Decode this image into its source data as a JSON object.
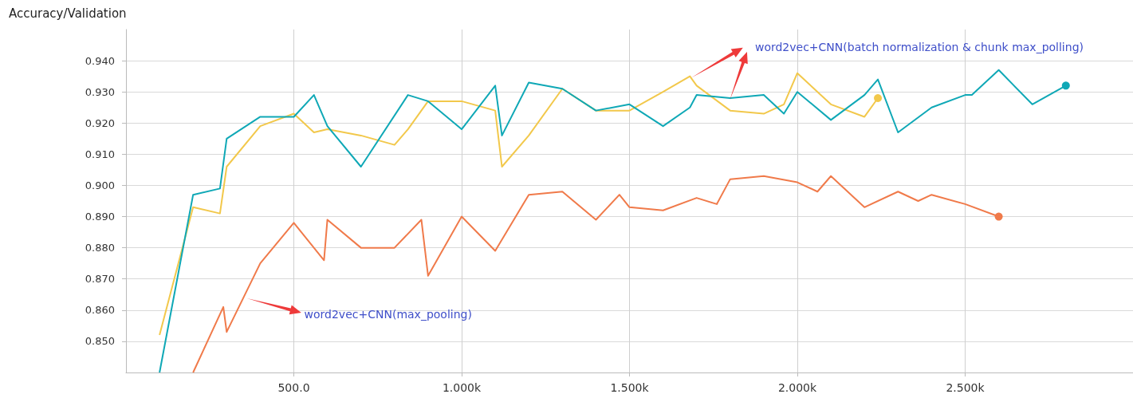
{
  "chart_data": {
    "type": "line",
    "title": "Accuracy/Validation",
    "xlim": [
      0,
      3000
    ],
    "ylim": [
      0.84,
      0.95
    ],
    "xticks": [
      {
        "value": 500,
        "label": "500.0"
      },
      {
        "value": 1000,
        "label": "1.000k"
      },
      {
        "value": 1500,
        "label": "1.500k"
      },
      {
        "value": 2000,
        "label": "2.000k"
      },
      {
        "value": 2500,
        "label": "2.500k"
      }
    ],
    "yticks": [
      {
        "value": 0.85,
        "label": "0.850"
      },
      {
        "value": 0.86,
        "label": "0.860"
      },
      {
        "value": 0.87,
        "label": "0.870"
      },
      {
        "value": 0.88,
        "label": "0.880"
      },
      {
        "value": 0.89,
        "label": "0.890"
      },
      {
        "value": 0.9,
        "label": "0.900"
      },
      {
        "value": 0.91,
        "label": "0.910"
      },
      {
        "value": 0.92,
        "label": "0.920"
      },
      {
        "value": 0.93,
        "label": "0.930"
      },
      {
        "value": 0.94,
        "label": "0.940"
      }
    ],
    "grid": true,
    "series": [
      {
        "color": "#f07a4a",
        "x": [
          200,
          290,
          300,
          400,
          500,
          590,
          600,
          700,
          800,
          880,
          900,
          1000,
          1100,
          1200,
          1300,
          1400,
          1470,
          1500,
          1600,
          1700,
          1760,
          1800,
          1900,
          2000,
          2060,
          2100,
          2200,
          2300,
          2360,
          2400,
          2500,
          2600
        ],
        "values": [
          0.84,
          0.861,
          0.853,
          0.875,
          0.888,
          0.876,
          0.889,
          0.88,
          0.88,
          0.889,
          0.871,
          0.89,
          0.879,
          0.897,
          0.898,
          0.889,
          0.897,
          0.893,
          0.892,
          0.896,
          0.894,
          0.902,
          0.903,
          0.901,
          0.898,
          0.903,
          0.893,
          0.898,
          0.895,
          0.897,
          0.894,
          0.89
        ]
      },
      {
        "color": "#f2c84b",
        "x": [
          100,
          200,
          280,
          300,
          400,
          500,
          560,
          600,
          700,
          800,
          840,
          900,
          1000,
          1100,
          1120,
          1200,
          1300,
          1400,
          1500,
          1600,
          1680,
          1700,
          1800,
          1900,
          1960,
          2000,
          2100,
          2200,
          2240
        ],
        "values": [
          0.852,
          0.893,
          0.891,
          0.906,
          0.919,
          0.923,
          0.917,
          0.918,
          0.916,
          0.913,
          0.918,
          0.927,
          0.927,
          0.924,
          0.906,
          0.916,
          0.931,
          0.924,
          0.924,
          0.93,
          0.935,
          0.932,
          0.924,
          0.923,
          0.926,
          0.936,
          0.926,
          0.922,
          0.928
        ]
      },
      {
        "color": "#0fa8b6",
        "x": [
          100,
          200,
          280,
          300,
          400,
          500,
          560,
          600,
          700,
          840,
          900,
          1000,
          1100,
          1120,
          1200,
          1300,
          1400,
          1500,
          1600,
          1680,
          1700,
          1800,
          1900,
          1960,
          2000,
          2100,
          2200,
          2240,
          2300,
          2400,
          2500,
          2520,
          2600,
          2700,
          2800
        ],
        "values": [
          0.84,
          0.897,
          0.899,
          0.915,
          0.922,
          0.922,
          0.929,
          0.919,
          0.906,
          0.929,
          0.927,
          0.918,
          0.932,
          0.916,
          0.933,
          0.931,
          0.924,
          0.926,
          0.919,
          0.925,
          0.929,
          0.928,
          0.929,
          0.923,
          0.93,
          0.921,
          0.929,
          0.934,
          0.917,
          0.925,
          0.929,
          0.929,
          0.937,
          0.926,
          0.932
        ]
      }
    ],
    "annotations": [
      "word2vec+CNN(max_pooling)",
      "word2vec+CNN(batch normalization & chunk max_polling)"
    ]
  }
}
